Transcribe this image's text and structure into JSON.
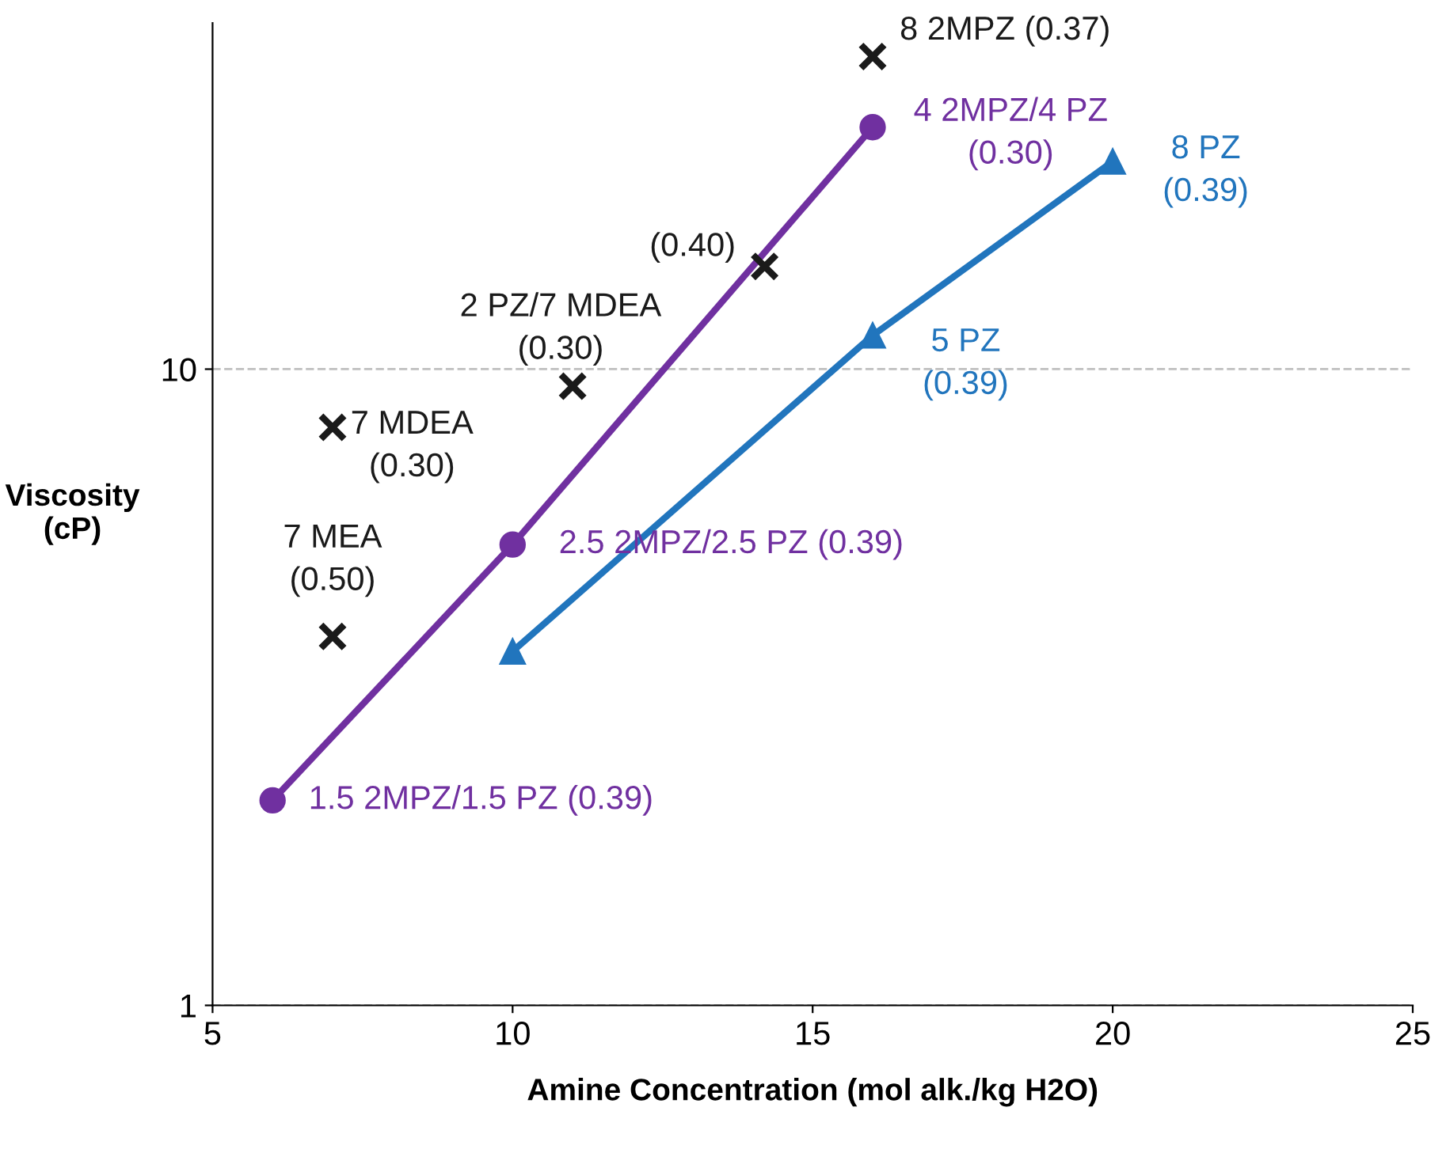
{
  "chart_data": {
    "type": "scatter",
    "xlabel": "Amine Concentration (mol alk./kg H2O)",
    "ylabel": "Viscosity\n(cP)",
    "log": "y",
    "grid": "y",
    "xlim": [
      5,
      25
    ],
    "xticks": [
      5,
      10,
      15,
      20,
      25
    ],
    "ylim": [
      1,
      35
    ],
    "yticks": [
      1,
      10
    ],
    "series": [
      {
        "type": "line",
        "color": "#7030a0",
        "marker": "circle",
        "x": [
          6,
          10,
          16
        ],
        "values": [
          2.1,
          5.3,
          24
        ]
      },
      {
        "type": "line",
        "color": "#2175bd",
        "marker": "triangle",
        "x": [
          10,
          16,
          20
        ],
        "values": [
          3.6,
          11.3,
          21.2
        ]
      },
      {
        "color": "#1a1a1a",
        "marker": "cross",
        "x": [
          7,
          7,
          11,
          14.2,
          16
        ],
        "values": [
          3.8,
          8.1,
          9.4,
          14.5,
          31
        ]
      }
    ],
    "annotations": [
      {
        "text": "1.5 2MPZ/1.5 PZ (0.39)",
        "x": 6,
        "y": 2.1
      },
      {
        "text": "2.5 2MPZ/2.5 PZ (0.39)",
        "x": 10,
        "y": 5.3
      },
      {
        "text": "4 2MPZ/4 PZ\n(0.30)",
        "x": 16,
        "y": 24
      },
      {
        "text": "5 PZ\n(0.39)",
        "x": 16,
        "y": 11.3
      },
      {
        "text": "8 PZ\n(0.39)",
        "x": 20,
        "y": 21.2
      },
      {
        "text": "7 MEA\n(0.50)",
        "x": 7,
        "y": 3.8
      },
      {
        "text": "7 MDEA\n(0.30)",
        "x": 7,
        "y": 8.1
      },
      {
        "text": "2 PZ/7 MDEA\n(0.30)",
        "x": 11,
        "y": 9.4
      },
      {
        "text": "(0.40)",
        "x": 14.2,
        "y": 14.5
      },
      {
        "text": "8 2MPZ (0.37)",
        "x": 16,
        "y": 31
      }
    ]
  }
}
